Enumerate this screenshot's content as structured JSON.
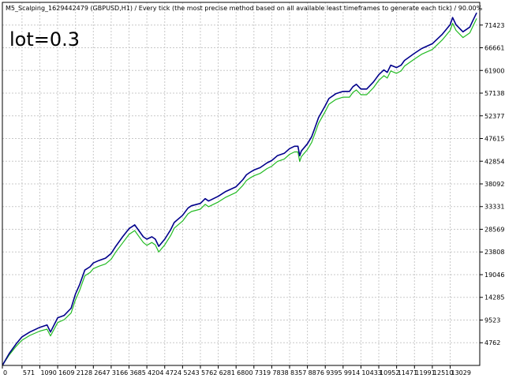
{
  "header": {
    "title": "M5_Scalping_1629442479 (GBPUSD,H1) / Every tick (the most precise method based on all available least timeframes to generate each tick) / 90.00%"
  },
  "annotation": {
    "label": "lot=0.3"
  },
  "colors": {
    "balance": "#00008b",
    "equity": "#22bb22",
    "grid": "#c8c8c8",
    "axis": "#000000"
  },
  "chart_data": {
    "type": "line",
    "title": "M5_Scalping_1629442479 (GBPUSD,H1) / Every tick (the most precise method based on all available least timeframes to generate each tick) / 90.00%",
    "annotations": [
      "lot=0.3"
    ],
    "xlabel": "",
    "ylabel": "",
    "xlim": [
      0,
      13890
    ],
    "ylim": [
      0,
      76185
    ],
    "grid": true,
    "x_ticks": [
      0,
      571,
      1090,
      1609,
      2128,
      2647,
      3166,
      3685,
      4204,
      4724,
      5243,
      5762,
      6281,
      6800,
      7319,
      7838,
      8357,
      8876,
      9395,
      9914,
      10433,
      10952,
      11471,
      11991,
      12510,
      13029
    ],
    "y_ticks": [
      4762,
      9523,
      14285,
      19046,
      23808,
      28569,
      33331,
      38092,
      42854,
      47615,
      52377,
      57138,
      61900,
      66661,
      71423
    ],
    "series": [
      {
        "key": "balance",
        "x": [
          0,
          200,
          400,
          571,
          800,
          1090,
          1300,
          1400,
          1609,
          1800,
          2000,
          2128,
          2250,
          2400,
          2550,
          2647,
          2800,
          3000,
          3166,
          3300,
          3500,
          3685,
          3850,
          4000,
          4100,
          4204,
          4350,
          4450,
          4550,
          4724,
          4900,
          5000,
          5243,
          5400,
          5500,
          5762,
          5900,
          6000,
          6281,
          6500,
          6800,
          7000,
          7100,
          7200,
          7319,
          7500,
          7700,
          7838,
          8000,
          8200,
          8357,
          8500,
          8600,
          8650,
          8700,
          8876,
          9000,
          9100,
          9200,
          9395,
          9500,
          9700,
          9914,
          10100,
          10200,
          10300,
          10433,
          10600,
          10800,
          10952,
          11100,
          11200,
          11300,
          11471,
          11600,
          11700,
          11991,
          12200,
          12510,
          12800,
          13029,
          13100,
          13200,
          13400,
          13600,
          13700,
          13800
        ],
        "y": [
          0,
          2500,
          4500,
          6000,
          7000,
          8000,
          8500,
          7000,
          10000,
          10500,
          12000,
          15000,
          17000,
          20000,
          20700,
          21500,
          22000,
          22500,
          23500,
          25000,
          27000,
          28700,
          29500,
          28000,
          27000,
          26500,
          27000,
          26500,
          25000,
          26500,
          28500,
          30000,
          31500,
          33000,
          33500,
          34000,
          35000,
          34500,
          35500,
          36500,
          37500,
          39000,
          40000,
          40500,
          41000,
          41500,
          42500,
          43000,
          44000,
          44500,
          45500,
          46000,
          46000,
          44000,
          45000,
          46500,
          48000,
          50000,
          52000,
          54500,
          56000,
          57000,
          57500,
          57500,
          58500,
          59000,
          58000,
          58000,
          59500,
          61000,
          62000,
          61500,
          63000,
          62500,
          63000,
          64000,
          65500,
          66500,
          67500,
          69500,
          71500,
          73000,
          71500,
          70000,
          71000,
          72500,
          74000
        ]
      },
      {
        "key": "equity",
        "x": [
          0,
          200,
          400,
          571,
          800,
          1090,
          1300,
          1400,
          1609,
          1800,
          2000,
          2128,
          2250,
          2400,
          2550,
          2647,
          2800,
          3000,
          3166,
          3300,
          3500,
          3685,
          3850,
          4000,
          4100,
          4204,
          4350,
          4450,
          4550,
          4724,
          4900,
          5000,
          5243,
          5400,
          5500,
          5762,
          5900,
          6000,
          6281,
          6500,
          6800,
          7000,
          7100,
          7200,
          7319,
          7500,
          7700,
          7838,
          8000,
          8200,
          8357,
          8500,
          8600,
          8650,
          8700,
          8876,
          9000,
          9100,
          9200,
          9395,
          9500,
          9700,
          9914,
          10100,
          10200,
          10300,
          10433,
          10600,
          10800,
          10952,
          11100,
          11200,
          11300,
          11471,
          11600,
          11700,
          11991,
          12200,
          12510,
          12800,
          13029,
          13100,
          13200,
          13400,
          13600,
          13700,
          13800
        ],
        "y": [
          0,
          2200,
          4000,
          5300,
          6300,
          7200,
          7600,
          6200,
          9000,
          9600,
          11000,
          13800,
          15800,
          18800,
          19500,
          20300,
          20800,
          21300,
          22300,
          23800,
          25700,
          27500,
          28300,
          26800,
          25800,
          25200,
          25800,
          25300,
          23800,
          25300,
          27300,
          28800,
          30300,
          31800,
          32300,
          32800,
          33800,
          33300,
          34300,
          35300,
          36300,
          37800,
          38800,
          39300,
          39800,
          40300,
          41300,
          41800,
          42800,
          43300,
          44300,
          44800,
          44800,
          42800,
          43800,
          45300,
          46800,
          48800,
          50800,
          53300,
          54800,
          55800,
          56300,
          56300,
          57300,
          57800,
          56800,
          56800,
          58300,
          59800,
          60800,
          60300,
          61800,
          61300,
          61800,
          62800,
          64300,
          65300,
          66300,
          68300,
          70300,
          71800,
          70300,
          68800,
          69800,
          71300,
          72800
        ]
      }
    ]
  }
}
